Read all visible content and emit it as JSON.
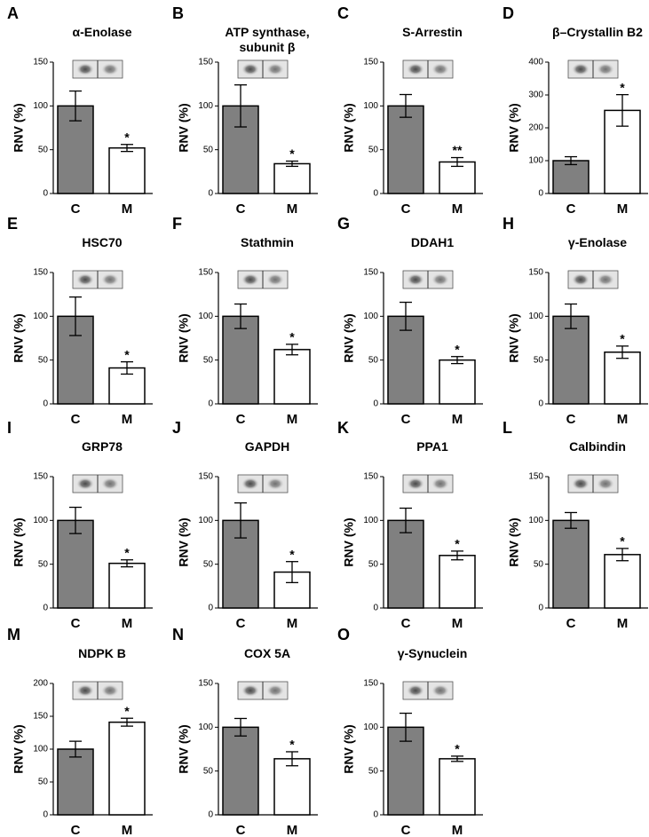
{
  "chart_data": [
    {
      "type": "bar",
      "panel": "A",
      "title": "α-Enolase",
      "y_label": "RNV (%)",
      "categories": [
        "C",
        "M"
      ],
      "values": [
        100,
        52
      ],
      "errors": [
        17,
        4
      ],
      "annotation": "*",
      "colors": [
        "#808080",
        "#ffffff"
      ],
      "ylim": [
        0,
        150
      ],
      "yticks": [
        0,
        50,
        100,
        150
      ]
    },
    {
      "type": "bar",
      "panel": "B",
      "title": "ATP synthase, subunit β",
      "y_label": "RNV (%)",
      "categories": [
        "C",
        "M"
      ],
      "values": [
        100,
        34
      ],
      "errors": [
        24,
        3
      ],
      "annotation": "*",
      "colors": [
        "#808080",
        "#ffffff"
      ],
      "ylim": [
        0,
        150
      ],
      "yticks": [
        0,
        50,
        100,
        150
      ]
    },
    {
      "type": "bar",
      "panel": "C",
      "title": "S-Arrestin",
      "y_label": "RNV (%)",
      "categories": [
        "C",
        "M"
      ],
      "values": [
        100,
        36
      ],
      "errors": [
        13,
        5
      ],
      "annotation": "**",
      "colors": [
        "#808080",
        "#ffffff"
      ],
      "ylim": [
        0,
        150
      ],
      "yticks": [
        0,
        50,
        100,
        150
      ]
    },
    {
      "type": "bar",
      "panel": "D",
      "title": "β–Crystallin  B2",
      "y_label": "RNV (%)",
      "categories": [
        "C",
        "M"
      ],
      "values": [
        100,
        253
      ],
      "errors": [
        12,
        48
      ],
      "annotation": "*",
      "colors": [
        "#808080",
        "#ffffff"
      ],
      "ylim": [
        0,
        400
      ],
      "yticks": [
        0,
        100,
        200,
        300,
        400
      ]
    },
    {
      "type": "bar",
      "panel": "E",
      "title": "HSC70",
      "y_label": "RNV (%)",
      "categories": [
        "C",
        "M"
      ],
      "values": [
        100,
        41
      ],
      "errors": [
        22,
        7
      ],
      "annotation": "*",
      "colors": [
        "#808080",
        "#ffffff"
      ],
      "ylim": [
        0,
        150
      ],
      "yticks": [
        0,
        50,
        100,
        150
      ]
    },
    {
      "type": "bar",
      "panel": "F",
      "title": "Stathmin",
      "y_label": "RNV (%)",
      "categories": [
        "C",
        "M"
      ],
      "values": [
        100,
        62
      ],
      "errors": [
        14,
        6
      ],
      "annotation": "*",
      "colors": [
        "#808080",
        "#ffffff"
      ],
      "ylim": [
        0,
        150
      ],
      "yticks": [
        0,
        50,
        100,
        150
      ]
    },
    {
      "type": "bar",
      "panel": "G",
      "title": "DDAH1",
      "y_label": "RNV (%)",
      "categories": [
        "C",
        "M"
      ],
      "values": [
        100,
        50
      ],
      "errors": [
        16,
        4
      ],
      "annotation": "*",
      "colors": [
        "#808080",
        "#ffffff"
      ],
      "ylim": [
        0,
        150
      ],
      "yticks": [
        0,
        50,
        100,
        150
      ]
    },
    {
      "type": "bar",
      "panel": "H",
      "title": "γ-Enolase",
      "y_label": "RNV (%)",
      "categories": [
        "C",
        "M"
      ],
      "values": [
        100,
        59
      ],
      "errors": [
        14,
        7
      ],
      "annotation": "*",
      "colors": [
        "#808080",
        "#ffffff"
      ],
      "ylim": [
        0,
        150
      ],
      "yticks": [
        0,
        50,
        100,
        150
      ]
    },
    {
      "type": "bar",
      "panel": "I",
      "title": "GRP78",
      "y_label": "RNV (%)",
      "categories": [
        "C",
        "M"
      ],
      "values": [
        100,
        51
      ],
      "errors": [
        15,
        4
      ],
      "annotation": "*",
      "colors": [
        "#808080",
        "#ffffff"
      ],
      "ylim": [
        0,
        150
      ],
      "yticks": [
        0,
        50,
        100,
        150
      ]
    },
    {
      "type": "bar",
      "panel": "J",
      "title": "GAPDH",
      "y_label": "RNV (%)",
      "categories": [
        "C",
        "M"
      ],
      "values": [
        100,
        41
      ],
      "errors": [
        20,
        12
      ],
      "annotation": "*",
      "colors": [
        "#808080",
        "#ffffff"
      ],
      "ylim": [
        0,
        150
      ],
      "yticks": [
        0,
        50,
        100,
        150
      ]
    },
    {
      "type": "bar",
      "panel": "K",
      "title": "PPA1",
      "y_label": "RNV (%)",
      "categories": [
        "C",
        "M"
      ],
      "values": [
        100,
        60
      ],
      "errors": [
        14,
        5
      ],
      "annotation": "*",
      "colors": [
        "#808080",
        "#ffffff"
      ],
      "ylim": [
        0,
        150
      ],
      "yticks": [
        0,
        50,
        100,
        150
      ]
    },
    {
      "type": "bar",
      "panel": "L",
      "title": "Calbindin",
      "y_label": "RNV (%)",
      "categories": [
        "C",
        "M"
      ],
      "values": [
        100,
        61
      ],
      "errors": [
        9,
        7
      ],
      "annotation": "*",
      "colors": [
        "#808080",
        "#ffffff"
      ],
      "ylim": [
        0,
        150
      ],
      "yticks": [
        0,
        50,
        100,
        150
      ]
    },
    {
      "type": "bar",
      "panel": "M",
      "title": "NDPK B",
      "y_label": "RNV (%)",
      "categories": [
        "C",
        "M"
      ],
      "values": [
        100,
        141
      ],
      "errors": [
        12,
        6
      ],
      "annotation": "*",
      "colors": [
        "#808080",
        "#ffffff"
      ],
      "ylim": [
        0,
        200
      ],
      "yticks": [
        0,
        50,
        100,
        150,
        200
      ]
    },
    {
      "type": "bar",
      "panel": "N",
      "title": "COX 5A",
      "y_label": "RNV (%)",
      "categories": [
        "C",
        "M"
      ],
      "values": [
        100,
        64
      ],
      "errors": [
        10,
        8
      ],
      "annotation": "*",
      "colors": [
        "#808080",
        "#ffffff"
      ],
      "ylim": [
        0,
        150
      ],
      "yticks": [
        0,
        50,
        100,
        150
      ]
    },
    {
      "type": "bar",
      "panel": "O",
      "title": "γ-Synuclein",
      "y_label": "RNV (%)",
      "categories": [
        "C",
        "M"
      ],
      "values": [
        100,
        64
      ],
      "errors": [
        16,
        3
      ],
      "annotation": "*",
      "colors": [
        "#808080",
        "#ffffff"
      ],
      "ylim": [
        0,
        150
      ],
      "yticks": [
        0,
        50,
        100,
        150
      ]
    }
  ]
}
